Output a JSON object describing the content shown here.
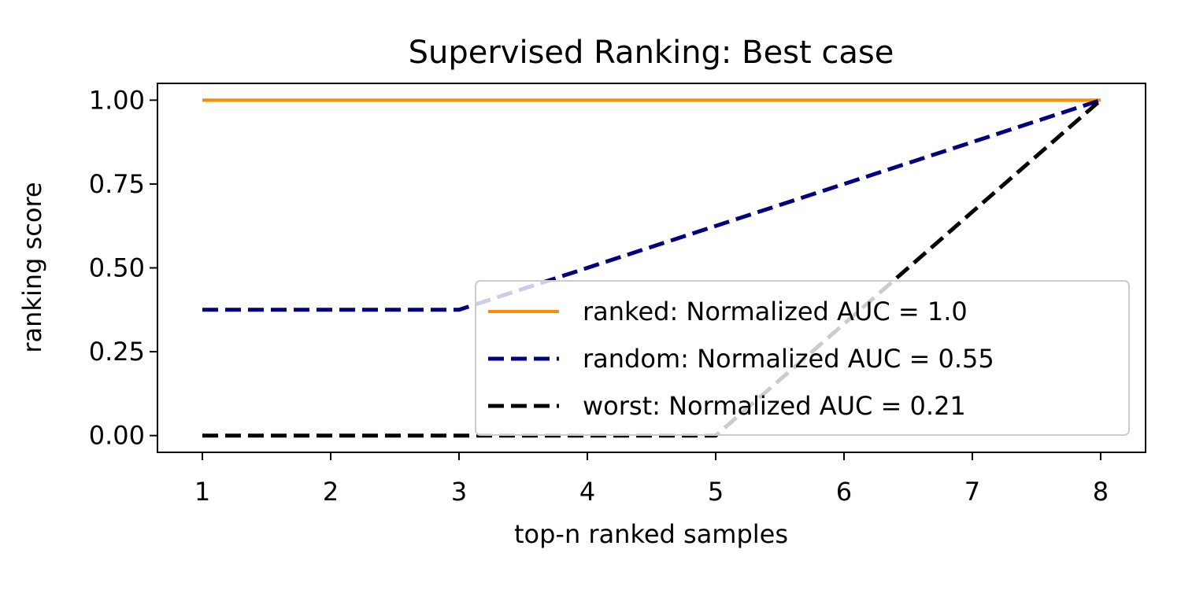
{
  "chart_data": {
    "type": "line",
    "title": "Supervised Ranking: Best case",
    "xlabel": "top-n ranked samples",
    "ylabel": "ranking score",
    "xlim": [
      0.65,
      8.35
    ],
    "ylim": [
      -0.05,
      1.05
    ],
    "xticks": [
      1,
      2,
      3,
      4,
      5,
      6,
      7,
      8
    ],
    "xtick_labels": [
      "1",
      "2",
      "3",
      "4",
      "5",
      "6",
      "7",
      "8"
    ],
    "yticks": [
      0.0,
      0.25,
      0.5,
      0.75,
      1.0
    ],
    "ytick_labels": [
      "0.00",
      "0.25",
      "0.50",
      "0.75",
      "1.00"
    ],
    "grid": false,
    "legend_position": "lower-right",
    "series": [
      {
        "name": "ranked: Normalized AUC = 1.0",
        "color": "#ff8c00",
        "style": "solid",
        "x": [
          1,
          2,
          3,
          4,
          5,
          6,
          7,
          8
        ],
        "y": [
          1.0,
          1.0,
          1.0,
          1.0,
          1.0,
          1.0,
          1.0,
          1.0
        ]
      },
      {
        "name": "random: Normalized AUC = 0.55",
        "color": "#000080",
        "style": "dashed",
        "x": [
          1,
          2,
          3,
          4,
          5,
          6,
          7,
          8
        ],
        "y": [
          0.375,
          0.375,
          0.375,
          0.5,
          0.625,
          0.75,
          0.875,
          1.0
        ]
      },
      {
        "name": "worst: Normalized AUC = 0.21",
        "color": "#000000",
        "style": "dashed",
        "x": [
          1,
          2,
          3,
          4,
          5,
          6,
          7,
          8
        ],
        "y": [
          0.0,
          0.0,
          0.0,
          0.0,
          0.0,
          0.333,
          0.667,
          1.0
        ]
      }
    ]
  }
}
